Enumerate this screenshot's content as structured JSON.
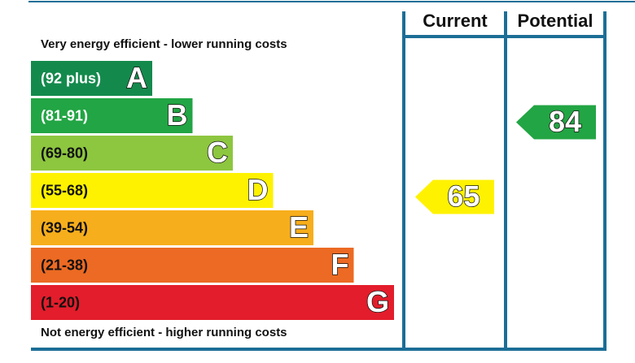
{
  "top_text": "Very energy efficient - lower running costs",
  "bottom_text": "Not energy efficient - higher running costs",
  "columns": [
    "Current",
    "Potential"
  ],
  "bands": [
    {
      "range": "(92 plus)",
      "letter": "A",
      "color": "#138a4c",
      "text_color": "#ffffff"
    },
    {
      "range": "(81-91)",
      "letter": "B",
      "color": "#22a544",
      "text_color": "#ffffff"
    },
    {
      "range": "(69-80)",
      "letter": "C",
      "color": "#8dc63f",
      "text_color": "#111111"
    },
    {
      "range": "(55-68)",
      "letter": "D",
      "color": "#fff200",
      "text_color": "#111111"
    },
    {
      "range": "(39-54)",
      "letter": "E",
      "color": "#f7ae1c",
      "text_color": "#111111"
    },
    {
      "range": "(21-38)",
      "letter": "F",
      "color": "#ec6a23",
      "text_color": "#111111"
    },
    {
      "range": "(1-20)",
      "letter": "G",
      "color": "#e31d2b",
      "text_color": "#111111"
    }
  ],
  "ratings": [
    {
      "value": 65,
      "color": "#fff200"
    },
    {
      "value": 84,
      "color": "#22a544"
    }
  ],
  "frame_color": "#1c6e96"
}
